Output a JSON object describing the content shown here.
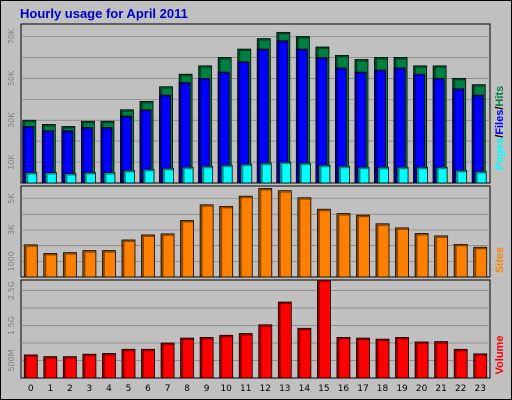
{
  "title": "Hourly usage for April 2011",
  "colors": {
    "hits": "#008040",
    "files": "#0000ff",
    "pages": "#00ffff",
    "sites": "#ff8000",
    "volume": "#ff0000",
    "grid": "#808080"
  },
  "chart_data": [
    {
      "type": "bar",
      "categories": [
        "0",
        "1",
        "2",
        "3",
        "4",
        "5",
        "6",
        "7",
        "8",
        "9",
        "10",
        "11",
        "12",
        "13",
        "14",
        "15",
        "16",
        "17",
        "18",
        "19",
        "20",
        "21",
        "22",
        "23"
      ],
      "legend": [
        "Pages",
        "/",
        "Files",
        "/",
        "Hits"
      ],
      "yticks": [
        "10K",
        "30K",
        "50K",
        "70K"
      ],
      "ytick_values": [
        10000,
        30000,
        50000,
        70000
      ],
      "ylim": [
        0,
        76000
      ],
      "series": [
        {
          "name": "Hits",
          "values": [
            30000,
            28000,
            27000,
            29500,
            29500,
            35000,
            39000,
            46000,
            52000,
            56000,
            60000,
            64000,
            69000,
            72000,
            70000,
            65000,
            61000,
            59000,
            60000,
            60000,
            56000,
            56000,
            50000,
            47000
          ]
        },
        {
          "name": "Files",
          "values": [
            27000,
            25000,
            25000,
            26500,
            26500,
            32000,
            35000,
            42000,
            48000,
            50000,
            53000,
            58000,
            64000,
            68000,
            64000,
            60000,
            55000,
            53000,
            54000,
            55000,
            52000,
            50000,
            45000,
            42000
          ]
        },
        {
          "name": "Pages",
          "values": [
            5000,
            5000,
            4500,
            5000,
            5000,
            6000,
            6500,
            7000,
            7500,
            8000,
            8500,
            9000,
            9500,
            10000,
            9500,
            8500,
            8000,
            7500,
            7500,
            7500,
            7500,
            7500,
            6000,
            5500
          ]
        }
      ]
    },
    {
      "type": "bar",
      "categories": [
        "0",
        "1",
        "2",
        "3",
        "4",
        "5",
        "6",
        "7",
        "8",
        "9",
        "10",
        "11",
        "12",
        "13",
        "14",
        "15",
        "16",
        "17",
        "18",
        "19",
        "20",
        "21",
        "22",
        "23"
      ],
      "legend": [
        "Sites"
      ],
      "yticks": [
        "1000",
        "3K",
        "5K"
      ],
      "ytick_values": [
        1000,
        3000,
        5000
      ],
      "ylim": [
        0,
        5800
      ],
      "series": [
        {
          "name": "Sites",
          "values": [
            2050,
            1500,
            1550,
            1680,
            1680,
            2360,
            2680,
            2750,
            3600,
            4600,
            4500,
            5150,
            5640,
            5500,
            5050,
            4320,
            4040,
            3940,
            3390,
            3130,
            2770,
            2620,
            2080,
            1900
          ]
        }
      ]
    },
    {
      "type": "bar",
      "categories": [
        "0",
        "1",
        "2",
        "3",
        "4",
        "5",
        "6",
        "7",
        "8",
        "9",
        "10",
        "11",
        "12",
        "13",
        "14",
        "15",
        "16",
        "17",
        "18",
        "19",
        "20",
        "21",
        "22",
        "23"
      ],
      "legend": [
        "Volume"
      ],
      "yticks": [
        "500M",
        "1.5G",
        "2.5G"
      ],
      "ytick_values": [
        500,
        1500,
        2500
      ],
      "ylim": [
        0,
        2800
      ],
      "series": [
        {
          "name": "Volume",
          "values": [
            660,
            610,
            610,
            680,
            700,
            820,
            820,
            1000,
            1140,
            1160,
            1220,
            1270,
            1520,
            2170,
            1420,
            2800,
            1160,
            1140,
            1110,
            1160,
            1030,
            1040,
            820,
            690
          ]
        }
      ]
    }
  ]
}
